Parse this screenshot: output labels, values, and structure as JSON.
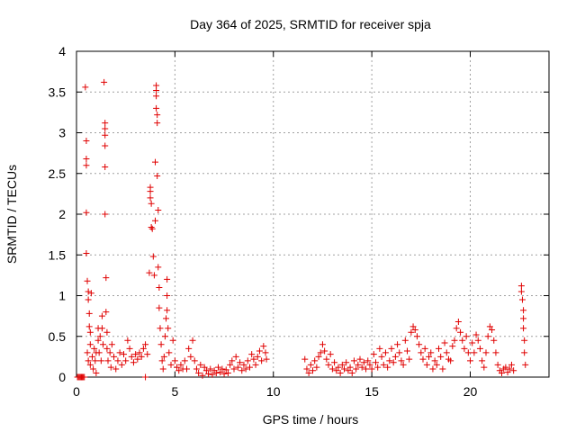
{
  "chart_data": {
    "type": "scatter",
    "title": "Day 364 of 2025, SRMTID for receiver spja",
    "xlabel": "GPS time / hours",
    "ylabel": "SRMTID / TECUs",
    "xlim": [
      0,
      24
    ],
    "ylim": [
      0,
      4
    ],
    "xticks": [
      0,
      5,
      10,
      15,
      20
    ],
    "xtick_labels": [
      "0",
      "5",
      "10",
      "15",
      "20"
    ],
    "yticks": [
      0,
      0.5,
      1,
      1.5,
      2,
      2.5,
      3,
      3.5,
      4
    ],
    "ytick_labels": [
      "0",
      "0.5",
      "1",
      "1.5",
      "2",
      "2.5",
      "3",
      "3.5",
      "4"
    ],
    "grid": true,
    "marker": "+",
    "marker_color": "#e00000",
    "series": [
      {
        "name": "SRMTID",
        "points": [
          [
            0.05,
            0.0
          ],
          [
            0.1,
            0.0
          ],
          [
            0.15,
            0.0
          ],
          [
            0.2,
            0.0
          ],
          [
            0.25,
            0.0
          ],
          [
            0.3,
            0.0
          ],
          [
            0.35,
            0.0
          ],
          [
            0.4,
            0.0
          ],
          [
            0.45,
            3.56
          ],
          [
            0.5,
            2.9
          ],
          [
            0.5,
            2.68
          ],
          [
            0.5,
            2.6
          ],
          [
            0.5,
            2.02
          ],
          [
            0.5,
            1.52
          ],
          [
            0.55,
            1.18
          ],
          [
            0.6,
            1.05
          ],
          [
            0.6,
            0.95
          ],
          [
            0.65,
            0.78
          ],
          [
            0.65,
            0.62
          ],
          [
            0.7,
            0.55
          ],
          [
            0.7,
            0.4
          ],
          [
            0.75,
            1.03
          ],
          [
            0.55,
            0.3
          ],
          [
            0.6,
            0.2
          ],
          [
            0.7,
            0.15
          ],
          [
            0.8,
            0.25
          ],
          [
            0.85,
            0.1
          ],
          [
            0.9,
            0.35
          ],
          [
            0.95,
            0.2
          ],
          [
            1.0,
            0.05
          ],
          [
            1.0,
            0.3
          ],
          [
            1.1,
            0.6
          ],
          [
            1.1,
            0.45
          ],
          [
            1.15,
            0.3
          ],
          [
            1.2,
            0.5
          ],
          [
            1.25,
            0.2
          ],
          [
            1.3,
            0.75
          ],
          [
            1.3,
            0.6
          ],
          [
            1.35,
            0.4
          ],
          [
            1.4,
            3.62
          ],
          [
            1.45,
            3.12
          ],
          [
            1.45,
            3.05
          ],
          [
            1.45,
            2.97
          ],
          [
            1.45,
            2.84
          ],
          [
            1.45,
            2.58
          ],
          [
            1.45,
            2.0
          ],
          [
            1.5,
            1.22
          ],
          [
            1.5,
            0.8
          ],
          [
            1.55,
            0.55
          ],
          [
            1.55,
            0.35
          ],
          [
            1.6,
            0.2
          ],
          [
            1.7,
            0.3
          ],
          [
            1.75,
            0.12
          ],
          [
            1.8,
            0.4
          ],
          [
            1.9,
            0.25
          ],
          [
            2.0,
            0.1
          ],
          [
            2.1,
            0.2
          ],
          [
            2.2,
            0.3
          ],
          [
            2.3,
            0.15
          ],
          [
            2.4,
            0.28
          ],
          [
            2.5,
            0.2
          ],
          [
            2.6,
            0.45
          ],
          [
            2.7,
            0.35
          ],
          [
            2.8,
            0.25
          ],
          [
            2.9,
            0.18
          ],
          [
            3.0,
            0.28
          ],
          [
            3.1,
            0.22
          ],
          [
            3.2,
            0.3
          ],
          [
            3.3,
            0.25
          ],
          [
            3.4,
            0.35
          ],
          [
            3.5,
            0.4
          ],
          [
            3.6,
            0.28
          ],
          [
            3.5,
            0.0
          ],
          [
            3.7,
            1.28
          ],
          [
            3.75,
            2.33
          ],
          [
            3.75,
            2.28
          ],
          [
            3.75,
            2.2
          ],
          [
            3.8,
            2.13
          ],
          [
            3.8,
            1.84
          ],
          [
            3.85,
            1.82
          ],
          [
            3.9,
            1.48
          ],
          [
            3.95,
            1.25
          ],
          [
            4.0,
            2.64
          ],
          [
            4.0,
            1.92
          ],
          [
            4.05,
            3.58
          ],
          [
            4.05,
            3.52
          ],
          [
            4.05,
            3.45
          ],
          [
            4.05,
            3.3
          ],
          [
            4.1,
            3.22
          ],
          [
            4.1,
            3.12
          ],
          [
            4.1,
            2.47
          ],
          [
            4.15,
            2.05
          ],
          [
            4.15,
            1.35
          ],
          [
            4.2,
            1.1
          ],
          [
            4.2,
            0.85
          ],
          [
            4.25,
            0.6
          ],
          [
            4.3,
            0.4
          ],
          [
            4.35,
            0.2
          ],
          [
            4.4,
            0.1
          ],
          [
            4.45,
            0.25
          ],
          [
            4.5,
            0.5
          ],
          [
            4.55,
            0.72
          ],
          [
            4.6,
            0.82
          ],
          [
            4.6,
            1.0
          ],
          [
            4.6,
            1.2
          ],
          [
            4.65,
            0.6
          ],
          [
            4.7,
            0.3
          ],
          [
            4.8,
            0.15
          ],
          [
            4.9,
            0.45
          ],
          [
            5.0,
            0.2
          ],
          [
            5.1,
            0.12
          ],
          [
            5.2,
            0.08
          ],
          [
            5.3,
            0.15
          ],
          [
            5.4,
            0.1
          ],
          [
            5.5,
            0.2
          ],
          [
            5.6,
            0.1
          ],
          [
            5.7,
            0.35
          ],
          [
            5.8,
            0.25
          ],
          [
            5.9,
            0.45
          ],
          [
            6.0,
            0.2
          ],
          [
            6.1,
            0.1
          ],
          [
            6.2,
            0.05
          ],
          [
            6.3,
            0.15
          ],
          [
            6.4,
            0.02
          ],
          [
            6.5,
            0.12
          ],
          [
            6.6,
            0.08
          ],
          [
            6.7,
            0.04
          ],
          [
            6.8,
            0.1
          ],
          [
            6.9,
            0.03
          ],
          [
            7.0,
            0.08
          ],
          [
            7.1,
            0.05
          ],
          [
            7.2,
            0.12
          ],
          [
            7.3,
            0.06
          ],
          [
            7.4,
            0.1
          ],
          [
            7.5,
            0.04
          ],
          [
            7.6,
            0.09
          ],
          [
            7.7,
            0.05
          ],
          [
            7.8,
            0.15
          ],
          [
            7.9,
            0.2
          ],
          [
            8.0,
            0.1
          ],
          [
            8.1,
            0.25
          ],
          [
            8.2,
            0.12
          ],
          [
            8.3,
            0.18
          ],
          [
            8.4,
            0.08
          ],
          [
            8.5,
            0.15
          ],
          [
            8.6,
            0.1
          ],
          [
            8.7,
            0.2
          ],
          [
            8.8,
            0.12
          ],
          [
            8.9,
            0.28
          ],
          [
            9.0,
            0.22
          ],
          [
            9.1,
            0.15
          ],
          [
            9.2,
            0.25
          ],
          [
            9.3,
            0.32
          ],
          [
            9.4,
            0.2
          ],
          [
            9.5,
            0.38
          ],
          [
            9.6,
            0.3
          ],
          [
            9.65,
            0.22
          ],
          [
            11.6,
            0.22
          ],
          [
            11.7,
            0.1
          ],
          [
            11.8,
            0.05
          ],
          [
            11.9,
            0.15
          ],
          [
            12.0,
            0.08
          ],
          [
            12.1,
            0.2
          ],
          [
            12.2,
            0.12
          ],
          [
            12.3,
            0.25
          ],
          [
            12.4,
            0.3
          ],
          [
            12.5,
            0.4
          ],
          [
            12.6,
            0.32
          ],
          [
            12.7,
            0.22
          ],
          [
            12.8,
            0.15
          ],
          [
            12.9,
            0.28
          ],
          [
            13.0,
            0.1
          ],
          [
            13.1,
            0.18
          ],
          [
            13.2,
            0.08
          ],
          [
            13.3,
            0.12
          ],
          [
            13.4,
            0.05
          ],
          [
            13.5,
            0.15
          ],
          [
            13.6,
            0.1
          ],
          [
            13.7,
            0.18
          ],
          [
            13.8,
            0.08
          ],
          [
            13.9,
            0.12
          ],
          [
            14.0,
            0.05
          ],
          [
            14.1,
            0.2
          ],
          [
            14.2,
            0.1
          ],
          [
            14.3,
            0.15
          ],
          [
            14.4,
            0.22
          ],
          [
            14.5,
            0.12
          ],
          [
            14.6,
            0.18
          ],
          [
            14.7,
            0.1
          ],
          [
            14.8,
            0.2
          ],
          [
            14.9,
            0.15
          ],
          [
            15.0,
            0.1
          ],
          [
            15.1,
            0.28
          ],
          [
            15.2,
            0.18
          ],
          [
            15.3,
            0.12
          ],
          [
            15.4,
            0.35
          ],
          [
            15.5,
            0.25
          ],
          [
            15.6,
            0.15
          ],
          [
            15.7,
            0.3
          ],
          [
            15.8,
            0.12
          ],
          [
            15.9,
            0.2
          ],
          [
            16.0,
            0.35
          ],
          [
            16.1,
            0.18
          ],
          [
            16.2,
            0.25
          ],
          [
            16.3,
            0.4
          ],
          [
            16.4,
            0.3
          ],
          [
            16.5,
            0.2
          ],
          [
            16.6,
            0.15
          ],
          [
            16.7,
            0.45
          ],
          [
            16.8,
            0.32
          ],
          [
            16.9,
            0.22
          ],
          [
            17.0,
            0.55
          ],
          [
            17.1,
            0.62
          ],
          [
            17.2,
            0.58
          ],
          [
            17.3,
            0.5
          ],
          [
            17.4,
            0.4
          ],
          [
            17.5,
            0.3
          ],
          [
            17.6,
            0.22
          ],
          [
            17.7,
            0.35
          ],
          [
            17.8,
            0.15
          ],
          [
            17.9,
            0.25
          ],
          [
            18.0,
            0.3
          ],
          [
            18.1,
            0.1
          ],
          [
            18.2,
            0.2
          ],
          [
            18.3,
            0.15
          ],
          [
            18.4,
            0.35
          ],
          [
            18.5,
            0.25
          ],
          [
            18.6,
            0.1
          ],
          [
            18.7,
            0.42
          ],
          [
            18.8,
            0.3
          ],
          [
            18.9,
            0.22
          ],
          [
            19.0,
            0.2
          ],
          [
            19.1,
            0.38
          ],
          [
            19.2,
            0.45
          ],
          [
            19.3,
            0.6
          ],
          [
            19.4,
            0.68
          ],
          [
            19.5,
            0.55
          ],
          [
            19.6,
            0.45
          ],
          [
            19.7,
            0.35
          ],
          [
            19.8,
            0.5
          ],
          [
            19.9,
            0.3
          ],
          [
            20.0,
            0.2
          ],
          [
            20.1,
            0.42
          ],
          [
            20.2,
            0.3
          ],
          [
            20.3,
            0.52
          ],
          [
            20.4,
            0.45
          ],
          [
            20.5,
            0.35
          ],
          [
            20.6,
            0.2
          ],
          [
            20.7,
            0.12
          ],
          [
            20.8,
            0.3
          ],
          [
            20.9,
            0.5
          ],
          [
            21.0,
            0.62
          ],
          [
            21.1,
            0.58
          ],
          [
            21.2,
            0.45
          ],
          [
            21.3,
            0.3
          ],
          [
            21.4,
            0.15
          ],
          [
            21.5,
            0.08
          ],
          [
            21.6,
            0.05
          ],
          [
            21.7,
            0.1
          ],
          [
            21.8,
            0.12
          ],
          [
            21.9,
            0.06
          ],
          [
            22.0,
            0.1
          ],
          [
            22.1,
            0.15
          ],
          [
            22.2,
            0.08
          ],
          [
            22.6,
            1.12
          ],
          [
            22.6,
            1.05
          ],
          [
            22.65,
            0.95
          ],
          [
            22.7,
            0.82
          ],
          [
            22.7,
            0.72
          ],
          [
            22.7,
            0.6
          ],
          [
            22.75,
            0.45
          ],
          [
            22.75,
            0.3
          ],
          [
            22.8,
            0.15
          ]
        ]
      }
    ]
  }
}
